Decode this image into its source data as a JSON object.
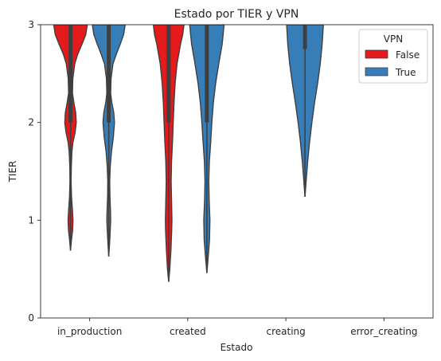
{
  "chart_data": {
    "type": "violin",
    "title": "Estado por TIER y VPN",
    "xlabel": "Estado",
    "ylabel": "TIER",
    "ylim": [
      0,
      3
    ],
    "yticks": [
      0,
      1,
      2,
      3
    ],
    "categories": [
      "in_production",
      "created",
      "creating",
      "error_creating"
    ],
    "legend": {
      "title": "VPN",
      "position": "top-right",
      "entries": [
        "False",
        "True"
      ]
    },
    "series": [
      {
        "name": "False",
        "color": "#e41a1c",
        "violins": [
          {
            "category": "in_production",
            "min": 0.69,
            "q1": 2.0,
            "q3": 3.0,
            "density": [
              [
                0.69,
                0.0
              ],
              [
                0.8,
                0.05
              ],
              [
                0.9,
                0.11
              ],
              [
                1.0,
                0.13
              ],
              [
                1.1,
                0.1
              ],
              [
                1.25,
                0.05
              ],
              [
                1.4,
                0.03
              ],
              [
                1.55,
                0.04
              ],
              [
                1.7,
                0.07
              ],
              [
                1.8,
                0.13
              ],
              [
                1.9,
                0.24
              ],
              [
                2.0,
                0.3
              ],
              [
                2.1,
                0.27
              ],
              [
                2.2,
                0.18
              ],
              [
                2.3,
                0.1
              ],
              [
                2.45,
                0.12
              ],
              [
                2.6,
                0.22
              ],
              [
                2.7,
                0.38
              ],
              [
                2.8,
                0.6
              ],
              [
                2.9,
                0.8
              ],
              [
                3.0,
                0.88
              ]
            ]
          },
          {
            "category": "created",
            "min": 0.37,
            "q1": 2.0,
            "q3": 3.0,
            "density": [
              [
                0.37,
                0.0
              ],
              [
                0.5,
                0.06
              ],
              [
                0.7,
                0.12
              ],
              [
                0.9,
                0.16
              ],
              [
                1.0,
                0.17
              ],
              [
                1.2,
                0.15
              ],
              [
                1.4,
                0.13
              ],
              [
                1.6,
                0.15
              ],
              [
                1.8,
                0.2
              ],
              [
                2.0,
                0.24
              ],
              [
                2.2,
                0.28
              ],
              [
                2.4,
                0.34
              ],
              [
                2.6,
                0.44
              ],
              [
                2.8,
                0.62
              ],
              [
                2.9,
                0.74
              ],
              [
                3.0,
                0.8
              ]
            ]
          }
        ]
      },
      {
        "name": "True",
        "color": "#377eb8",
        "violins": [
          {
            "category": "in_production",
            "min": 0.63,
            "q1": 2.0,
            "q3": 3.0,
            "density": [
              [
                0.63,
                0.0
              ],
              [
                0.75,
                0.04
              ],
              [
                0.9,
                0.08
              ],
              [
                1.0,
                0.1
              ],
              [
                1.1,
                0.09
              ],
              [
                1.25,
                0.06
              ],
              [
                1.4,
                0.05
              ],
              [
                1.55,
                0.08
              ],
              [
                1.7,
                0.14
              ],
              [
                1.85,
                0.24
              ],
              [
                2.0,
                0.3
              ],
              [
                2.1,
                0.26
              ],
              [
                2.2,
                0.16
              ],
              [
                2.3,
                0.1
              ],
              [
                2.45,
                0.12
              ],
              [
                2.6,
                0.22
              ],
              [
                2.7,
                0.4
              ],
              [
                2.8,
                0.6
              ],
              [
                2.9,
                0.78
              ],
              [
                3.0,
                0.86
              ]
            ]
          },
          {
            "category": "created",
            "min": 0.46,
            "q1": 2.0,
            "q3": 3.0,
            "density": [
              [
                0.46,
                0.0
              ],
              [
                0.6,
                0.06
              ],
              [
                0.8,
                0.14
              ],
              [
                1.0,
                0.16
              ],
              [
                1.2,
                0.12
              ],
              [
                1.4,
                0.1
              ],
              [
                1.6,
                0.13
              ],
              [
                1.8,
                0.2
              ],
              [
                2.0,
                0.26
              ],
              [
                2.2,
                0.34
              ],
              [
                2.4,
                0.46
              ],
              [
                2.6,
                0.62
              ],
              [
                2.8,
                0.8
              ],
              [
                3.0,
                0.9
              ]
            ]
          },
          {
            "category": "creating",
            "min": 1.24,
            "q1": 2.75,
            "q3": 3.0,
            "density": [
              [
                1.24,
                0.0
              ],
              [
                1.4,
                0.06
              ],
              [
                1.6,
                0.14
              ],
              [
                1.8,
                0.24
              ],
              [
                2.0,
                0.36
              ],
              [
                2.2,
                0.5
              ],
              [
                2.4,
                0.66
              ],
              [
                2.6,
                0.8
              ],
              [
                2.8,
                0.9
              ],
              [
                3.0,
                0.96
              ]
            ]
          }
        ]
      }
    ]
  }
}
